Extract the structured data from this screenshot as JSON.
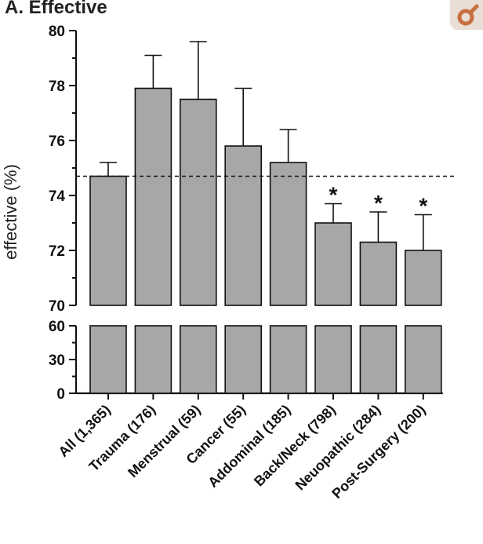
{
  "panel_title": "A. Effective",
  "badge_icon": "circle-arrow-icon",
  "colors": {
    "bar_fill": "#a7a7a7",
    "bar_stroke": "#111111",
    "axis": "#111111",
    "reference_line": "#111111",
    "badge_bg": "#e9ddd6",
    "badge_icon": "#d27a4c"
  },
  "chart_data": {
    "type": "bar",
    "title": "A. Effective",
    "ylabel": "effective (%)",
    "xlabel": "",
    "categories": [
      "All (1,365)",
      "Trauma (176)",
      "Menstrual (59)",
      "Cancer (55)",
      "Addominal (185)",
      "Back/Neck (798)",
      "Neuopathic (284)",
      "Post-Surgery (200)"
    ],
    "values": [
      74.7,
      77.9,
      77.5,
      75.8,
      75.2,
      73.0,
      72.3,
      72.0
    ],
    "error_upper": [
      75.2,
      79.1,
      79.6,
      77.9,
      76.4,
      73.7,
      73.4,
      73.3
    ],
    "significance_marker": "*",
    "significant": [
      false,
      false,
      false,
      false,
      false,
      true,
      true,
      true
    ],
    "reference_line": 74.7,
    "reference_line_style": "dashed",
    "y_axis_broken": true,
    "ylim_upper": [
      70,
      80
    ],
    "yticks_upper": [
      "80",
      "78",
      "76",
      "74",
      "72",
      "70"
    ],
    "ylim_lower": [
      0,
      60
    ],
    "yticks_lower": [
      "60",
      "30",
      "0"
    ],
    "grid": false,
    "legend": "none"
  }
}
